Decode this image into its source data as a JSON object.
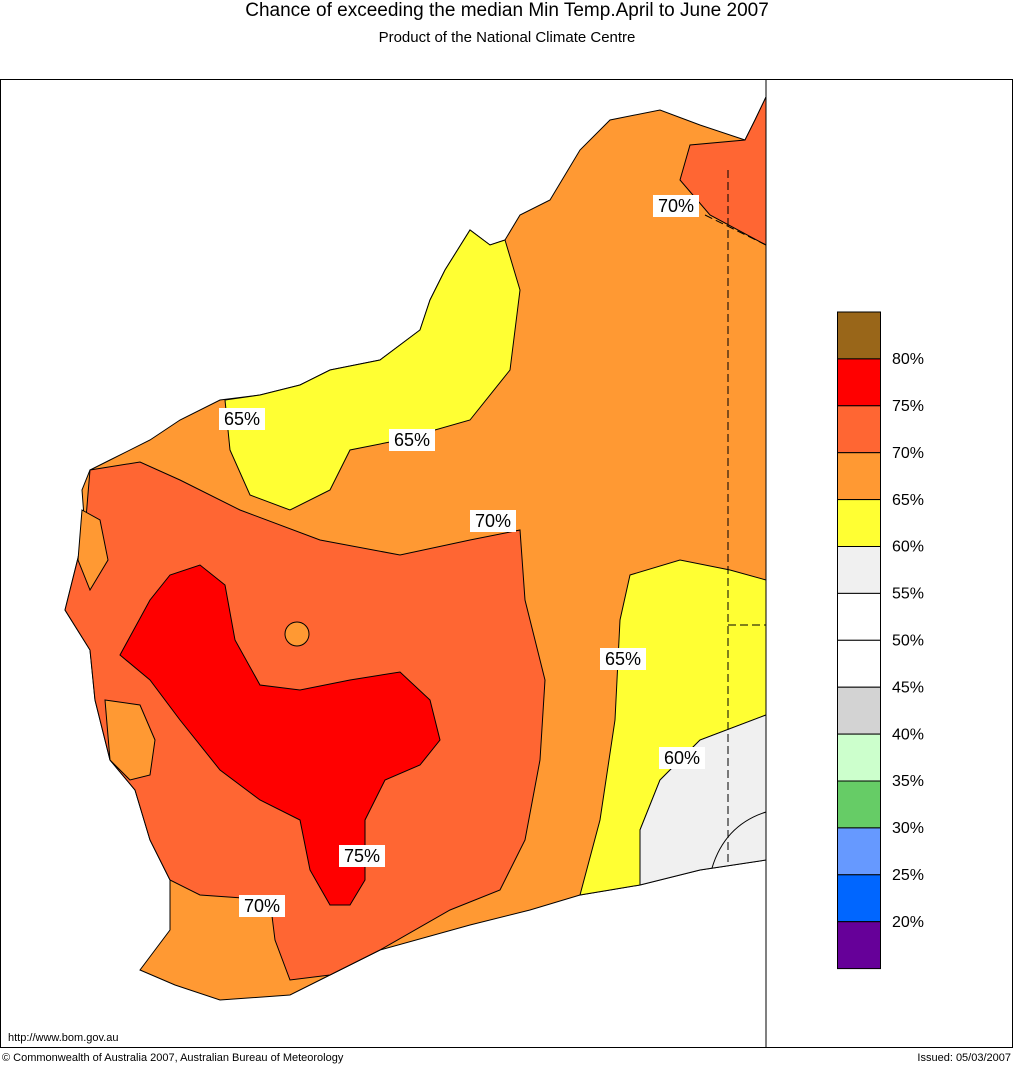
{
  "header": {
    "title": "Chance of exceeding the median Min Temp.April to June 2007",
    "subtitle": "Product of the National Climate Centre"
  },
  "map": {
    "contour_labels": [
      "70%",
      "65%",
      "65%",
      "70%",
      "65%",
      "60%",
      "75%",
      "70%"
    ]
  },
  "legend": {
    "labels": [
      "80%",
      "75%",
      "70%",
      "65%",
      "60%",
      "55%",
      "50%",
      "45%",
      "40%",
      "35%",
      "30%",
      "25%",
      "20%"
    ]
  },
  "footer": {
    "url": "http://www.bom.gov.au",
    "copyright": "© Commonwealth of Australia 2007, Australian Bureau of Meteorology",
    "issued": "Issued: 05/03/2007"
  }
}
